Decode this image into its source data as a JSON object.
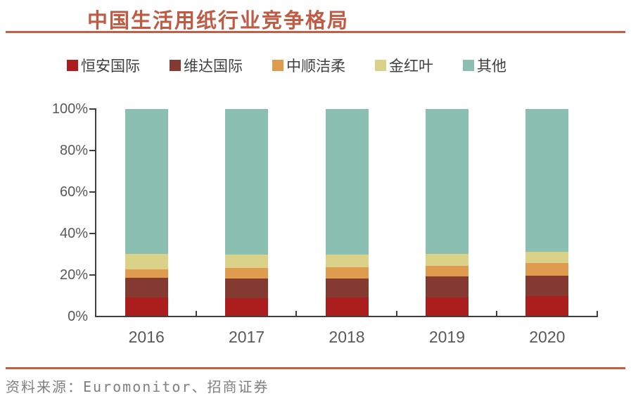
{
  "title": "中国生活用纸行业竞争格局",
  "source": "资料来源：Euromonitor、招商证券",
  "colors": {
    "accent_line": "#BE6046",
    "title_text": "#BF5B44",
    "axis": "#3F3F3F",
    "tick_label": "#595959",
    "source_text": "#7F7F7F"
  },
  "chart_data": {
    "type": "bar",
    "stacked": true,
    "title": "中国生活用纸行业竞争格局",
    "categories": [
      "2016",
      "2017",
      "2018",
      "2019",
      "2020"
    ],
    "series": [
      {
        "name": "恒安国际",
        "color": "#AC1E1E",
        "values": [
          9,
          8.5,
          9,
          9,
          9.5
        ]
      },
      {
        "name": "维达国际",
        "color": "#843931",
        "values": [
          9.5,
          9.5,
          9,
          10,
          10
        ]
      },
      {
        "name": "中顺洁柔",
        "color": "#DF9B4E",
        "values": [
          4,
          5,
          5.5,
          5,
          6
        ]
      },
      {
        "name": "金红叶",
        "color": "#DAD289",
        "values": [
          7.5,
          6.5,
          6,
          6,
          5.5
        ]
      },
      {
        "name": "其他",
        "color": "#8BBFB2",
        "values": [
          70,
          70.5,
          70.5,
          70,
          69
        ]
      }
    ],
    "xlabel": "",
    "ylabel": "",
    "ylim": [
      0,
      100
    ],
    "y_ticks": [
      "100%",
      "80%",
      "60%",
      "40%",
      "20%",
      "0%"
    ],
    "y_tick_unit": "%",
    "grid": false,
    "legend_position": "top"
  }
}
